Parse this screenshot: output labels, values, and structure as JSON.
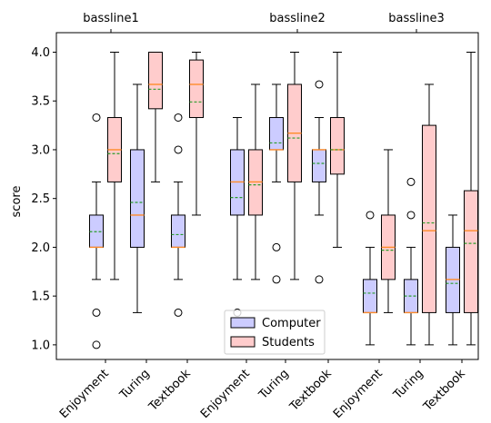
{
  "chart_data": {
    "type": "box",
    "ylabel": "score",
    "ylim": [
      0.85,
      4.2
    ],
    "yticks": [
      "1.0",
      "1.5",
      "2.0",
      "2.5",
      "3.0",
      "3.5",
      "4.0"
    ],
    "group_labels": [
      "bassline1",
      "bassline2",
      "bassline3"
    ],
    "categories": [
      "Enjoyment",
      "Turing",
      "Textbook",
      "Enjoyment",
      "Turing",
      "Textbook",
      "Enjoyment",
      "Turing",
      "Textbook"
    ],
    "legend": {
      "placement": "bottom-center",
      "entries": [
        "Computer",
        "Students"
      ]
    },
    "colors": {
      "Computer": "#ccccff",
      "Students": "#ffcccc",
      "median": "#ff8c2a",
      "mean": "#2a9d2a"
    },
    "series": [
      {
        "name": "Computer",
        "boxes": [
          {
            "whislo": 1.67,
            "q1": 2.0,
            "med": 2.0,
            "mean": 2.16,
            "q3": 2.33,
            "whishi": 2.67,
            "fliers": [
              1.0,
              1.33,
              3.33
            ]
          },
          {
            "whislo": 1.33,
            "q1": 2.0,
            "med": 2.33,
            "mean": 2.46,
            "q3": 3.0,
            "whishi": 3.67,
            "fliers": []
          },
          {
            "whislo": 1.67,
            "q1": 2.0,
            "med": 2.0,
            "mean": 2.13,
            "q3": 2.33,
            "whishi": 2.67,
            "fliers": [
              1.33,
              3.0,
              3.33
            ]
          },
          {
            "whislo": 1.67,
            "q1": 2.33,
            "med": 2.67,
            "mean": 2.51,
            "q3": 3.0,
            "whishi": 3.33,
            "fliers": [
              1.33
            ]
          },
          {
            "whislo": 2.67,
            "q1": 3.0,
            "med": 3.0,
            "mean": 3.07,
            "q3": 3.33,
            "whishi": 3.67,
            "fliers": [
              1.67,
              2.0
            ]
          },
          {
            "whislo": 2.33,
            "q1": 2.67,
            "med": 3.0,
            "mean": 2.86,
            "q3": 3.0,
            "whishi": 3.33,
            "fliers": [
              1.67,
              3.67
            ]
          },
          {
            "whislo": 1.0,
            "q1": 1.33,
            "med": 1.33,
            "mean": 1.53,
            "q3": 1.67,
            "whishi": 2.0,
            "fliers": [
              2.33
            ]
          },
          {
            "whislo": 1.0,
            "q1": 1.33,
            "med": 1.33,
            "mean": 1.5,
            "q3": 1.67,
            "whishi": 2.0,
            "fliers": [
              2.33,
              2.67
            ]
          },
          {
            "whislo": 1.0,
            "q1": 1.33,
            "med": 1.67,
            "mean": 1.63,
            "q3": 2.0,
            "whishi": 2.33,
            "fliers": []
          }
        ]
      },
      {
        "name": "Students",
        "boxes": [
          {
            "whislo": 1.67,
            "q1": 2.67,
            "med": 3.0,
            "mean": 2.96,
            "q3": 3.33,
            "whishi": 4.0,
            "fliers": []
          },
          {
            "whislo": 2.67,
            "q1": 3.42,
            "med": 3.67,
            "mean": 3.62,
            "q3": 4.0,
            "whishi": 4.0,
            "fliers": []
          },
          {
            "whislo": 2.33,
            "q1": 3.33,
            "med": 3.67,
            "mean": 3.49,
            "q3": 3.92,
            "whishi": 4.0,
            "fliers": []
          },
          {
            "whislo": 1.67,
            "q1": 2.33,
            "med": 2.67,
            "mean": 2.64,
            "q3": 3.0,
            "whishi": 3.67,
            "fliers": []
          },
          {
            "whislo": 1.67,
            "q1": 2.67,
            "med": 3.17,
            "mean": 3.12,
            "q3": 3.67,
            "whishi": 4.0,
            "fliers": []
          },
          {
            "whislo": 2.0,
            "q1": 2.75,
            "med": 3.0,
            "mean": 3.0,
            "q3": 3.33,
            "whishi": 4.0,
            "fliers": []
          },
          {
            "whislo": 1.33,
            "q1": 1.67,
            "med": 2.0,
            "mean": 1.97,
            "q3": 2.33,
            "whishi": 3.0,
            "fliers": []
          },
          {
            "whislo": 1.0,
            "q1": 1.33,
            "med": 2.17,
            "mean": 2.25,
            "q3": 3.25,
            "whishi": 3.67,
            "fliers": []
          },
          {
            "whislo": 1.0,
            "q1": 1.33,
            "med": 2.17,
            "mean": 2.04,
            "q3": 2.58,
            "whishi": 4.0,
            "fliers": []
          }
        ]
      }
    ]
  }
}
